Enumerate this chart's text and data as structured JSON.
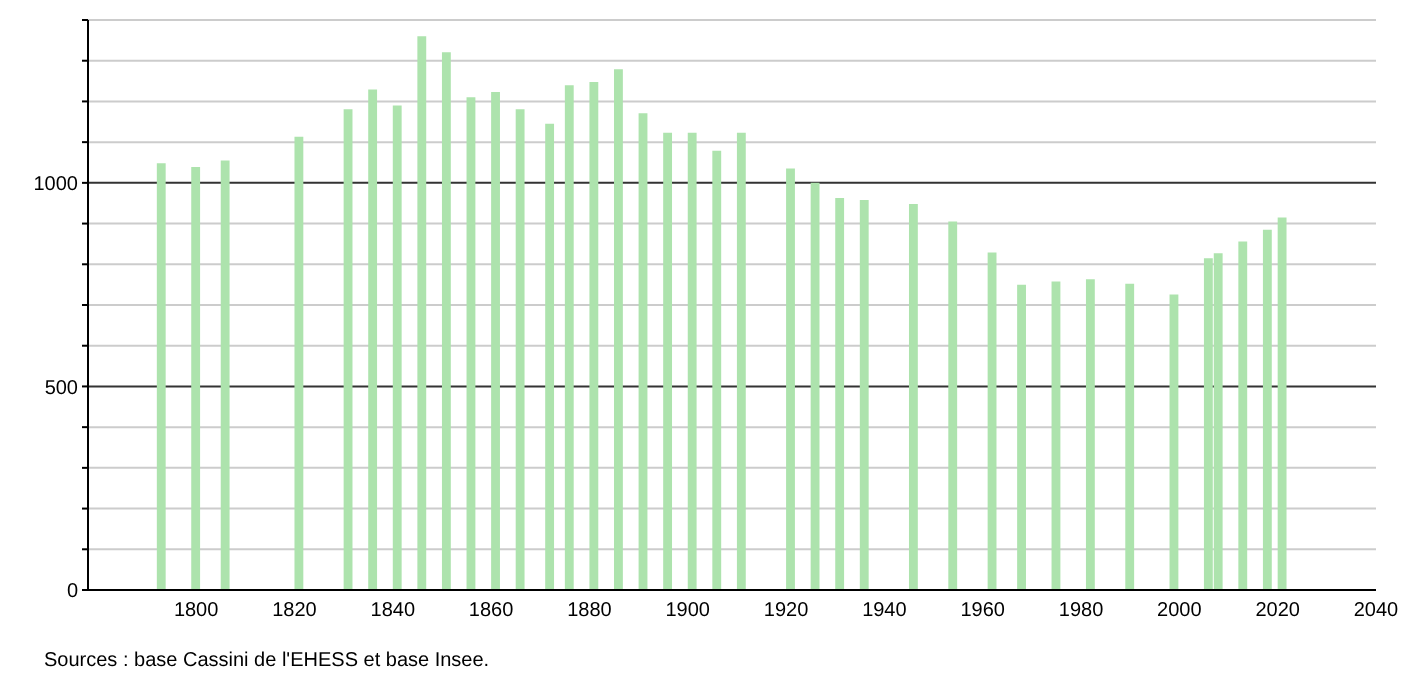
{
  "chart_data": {
    "type": "bar",
    "x": [
      1793,
      1800,
      1806,
      1821,
      1831,
      1836,
      1841,
      1846,
      1851,
      1856,
      1861,
      1866,
      1872,
      1876,
      1881,
      1886,
      1891,
      1896,
      1901,
      1906,
      1911,
      1921,
      1926,
      1931,
      1936,
      1946,
      1954,
      1962,
      1968,
      1975,
      1982,
      1990,
      1999,
      2006,
      2008,
      2013,
      2018,
      2021
    ],
    "values": [
      1048,
      1039,
      1055,
      1113,
      1181,
      1229,
      1190,
      1360,
      1321,
      1210,
      1223,
      1181,
      1145,
      1240,
      1248,
      1279,
      1171,
      1123,
      1123,
      1079,
      1123,
      1035,
      1000,
      963,
      958,
      948,
      905,
      829,
      750,
      758,
      763,
      752,
      726,
      815,
      827,
      856,
      885,
      915
    ],
    "color": "#ade3ad",
    "xlim": [
      1778,
      2040
    ],
    "xticks": [
      1800,
      1820,
      1840,
      1860,
      1880,
      1900,
      1920,
      1940,
      1960,
      1980,
      2000,
      2020,
      2040
    ],
    "ylim": [
      0,
      1400
    ],
    "yticks": [
      0,
      {
        "value": 100,
        "label": null
      },
      {
        "value": 200,
        "label": null
      },
      {
        "value": 300,
        "label": null
      },
      {
        "value": 400,
        "label": null
      },
      500,
      {
        "value": 600,
        "label": null
      },
      {
        "value": 700,
        "label": null
      },
      {
        "value": 800,
        "label": null
      },
      {
        "value": 900,
        "label": null
      },
      1000,
      {
        "value": 1100,
        "label": null
      },
      {
        "value": 1200,
        "label": null
      },
      {
        "value": 1300,
        "label": null
      },
      {
        "value": 1400,
        "label": null
      }
    ],
    "grid": "y",
    "annotations": [
      "Sources : base Cassini de l'EHESS et base Insee."
    ]
  }
}
